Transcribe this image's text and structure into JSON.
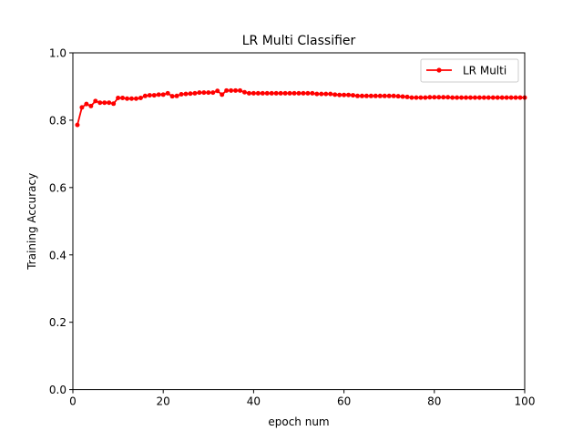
{
  "chart_data": {
    "type": "line",
    "title": "LR Multi Classifier",
    "xlabel": "epoch num",
    "ylabel": "Training Accuracy",
    "xlim": [
      0,
      100
    ],
    "ylim": [
      0.0,
      1.0
    ],
    "xticks": [
      "0",
      "20",
      "40",
      "60",
      "80",
      "100"
    ],
    "yticks": [
      "0.0",
      "0.2",
      "0.4",
      "0.6",
      "0.8",
      "1.0"
    ],
    "grid": false,
    "legend_position": "top-right",
    "series": [
      {
        "name": "LR Multi",
        "color": "#ff0000",
        "marker": "circle",
        "x": [
          1,
          2,
          3,
          4,
          5,
          6,
          7,
          8,
          9,
          10,
          11,
          12,
          13,
          14,
          15,
          16,
          17,
          18,
          19,
          20,
          21,
          22,
          23,
          24,
          25,
          26,
          27,
          28,
          29,
          30,
          31,
          32,
          33,
          34,
          35,
          36,
          37,
          38,
          39,
          40,
          41,
          42,
          43,
          44,
          45,
          46,
          47,
          48,
          49,
          50,
          51,
          52,
          53,
          54,
          55,
          56,
          57,
          58,
          59,
          60,
          61,
          62,
          63,
          64,
          65,
          66,
          67,
          68,
          69,
          70,
          71,
          72,
          73,
          74,
          75,
          76,
          77,
          78,
          79,
          80,
          81,
          82,
          83,
          84,
          85,
          86,
          87,
          88,
          89,
          90,
          91,
          92,
          93,
          94,
          95,
          96,
          97,
          98,
          99,
          100
        ],
        "y": [
          0.786,
          0.838,
          0.848,
          0.842,
          0.857,
          0.852,
          0.852,
          0.852,
          0.849,
          0.866,
          0.866,
          0.864,
          0.864,
          0.864,
          0.866,
          0.872,
          0.874,
          0.874,
          0.876,
          0.876,
          0.88,
          0.871,
          0.872,
          0.877,
          0.878,
          0.879,
          0.88,
          0.882,
          0.882,
          0.882,
          0.882,
          0.887,
          0.876,
          0.888,
          0.888,
          0.888,
          0.888,
          0.883,
          0.88,
          0.88,
          0.88,
          0.88,
          0.88,
          0.88,
          0.88,
          0.88,
          0.88,
          0.88,
          0.88,
          0.88,
          0.88,
          0.88,
          0.88,
          0.878,
          0.878,
          0.878,
          0.878,
          0.876,
          0.875,
          0.875,
          0.875,
          0.874,
          0.872,
          0.872,
          0.872,
          0.872,
          0.872,
          0.872,
          0.872,
          0.872,
          0.872,
          0.871,
          0.87,
          0.869,
          0.867,
          0.867,
          0.867,
          0.867,
          0.868,
          0.868,
          0.868,
          0.868,
          0.868,
          0.867,
          0.867,
          0.867,
          0.867,
          0.867,
          0.867,
          0.867,
          0.867,
          0.867,
          0.867,
          0.867,
          0.867,
          0.867,
          0.867,
          0.867,
          0.867,
          0.867
        ]
      }
    ]
  }
}
